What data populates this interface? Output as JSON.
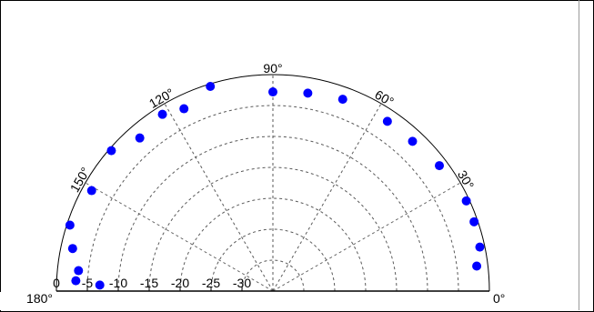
{
  "chart_data": {
    "type": "scatter",
    "projection": "polar-half",
    "title": "",
    "angle_unit": "degree",
    "angle_range": [
      0,
      180
    ],
    "angle_labels": [
      {
        "angle": 0,
        "label": "0°"
      },
      {
        "angle": 30,
        "label": "30°"
      },
      {
        "angle": 60,
        "label": "60°"
      },
      {
        "angle": 90,
        "label": "90°"
      },
      {
        "angle": 120,
        "label": "120°"
      },
      {
        "angle": 150,
        "label": "150°"
      },
      {
        "angle": 180,
        "label": "180°"
      }
    ],
    "radial_range": [
      -35,
      0
    ],
    "radial_ticks": [
      {
        "value": 0,
        "label": "0"
      },
      {
        "value": -5,
        "label": "-5"
      },
      {
        "value": -10,
        "label": "-10"
      },
      {
        "value": -15,
        "label": "-15"
      },
      {
        "value": -20,
        "label": "-20"
      },
      {
        "value": -25,
        "label": "-25"
      },
      {
        "value": -30,
        "label": "-30"
      }
    ],
    "grid_rings": [
      -5,
      -10,
      -15,
      -20,
      -25,
      -30
    ],
    "spoke_angles": [
      30,
      60,
      90,
      120,
      150
    ],
    "grid": true,
    "marker_color": "#0000ff",
    "series": [
      {
        "points": [
          {
            "angle": 7,
            "r": -1.8
          },
          {
            "angle": 12,
            "r": -0.8
          },
          {
            "angle": 19,
            "r": -0.6
          },
          {
            "angle": 25,
            "r": -0.5
          },
          {
            "angle": 37,
            "r": -1.3
          },
          {
            "angle": 47,
            "r": -1.9
          },
          {
            "angle": 56,
            "r": -1.9
          },
          {
            "angle": 70,
            "r": -2.0
          },
          {
            "angle": 80,
            "r": -2.5
          },
          {
            "angle": 90,
            "r": -2.8
          },
          {
            "angle": 107,
            "r": -0.4
          },
          {
            "angle": 116,
            "r": -2.2
          },
          {
            "angle": 122,
            "r": -1.3
          },
          {
            "angle": 131,
            "r": -2.2
          },
          {
            "angle": 139,
            "r": -0.4
          },
          {
            "angle": 151,
            "r": -1.5
          },
          {
            "angle": 162,
            "r": -0.5
          },
          {
            "angle": 168,
            "r": -1.9
          },
          {
            "angle": 174,
            "r": -3.4
          },
          {
            "angle": 177,
            "r": -3.1
          },
          {
            "angle": 178,
            "r": -7.0
          }
        ]
      }
    ]
  }
}
